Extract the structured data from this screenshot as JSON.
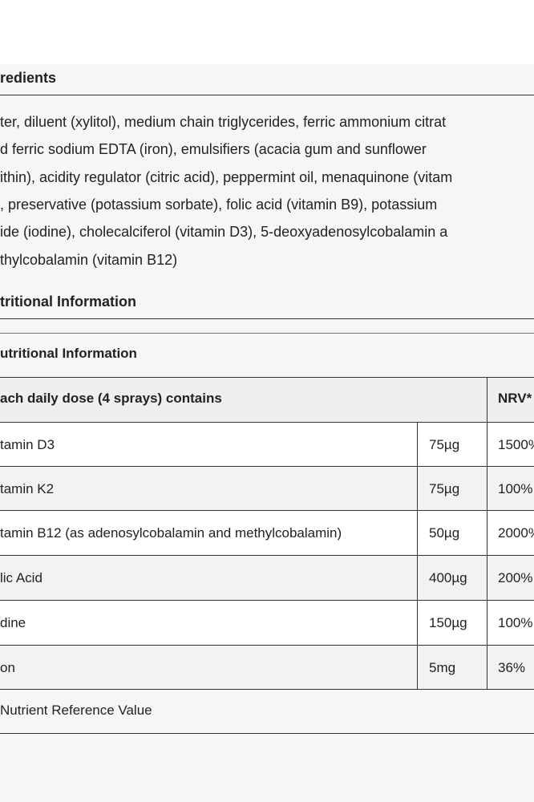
{
  "ingredients": {
    "title": "redients",
    "lines": [
      "ter, diluent (xylitol), medium chain triglycerides, ferric ammonium citrat",
      "d ferric sodium EDTA (iron), emulsifiers (acacia gum and sunflower",
      "ithin), acidity regulator (citric acid), peppermint oil, menaquinone (vitam",
      ", preservative (potassium sorbate), folic acid (vitamin B9), potassium",
      "ide (iodine), cholecalciferol (vitamin D3), 5-deoxyadenosylcobalamin a",
      "thylcobalamin (vitamin B12)"
    ]
  },
  "nutrition": {
    "title": "tritional Information",
    "caption": "utritional Information",
    "table": {
      "header": [
        "ach daily dose (4 sprays) contains",
        "NRV*"
      ],
      "rows": [
        [
          "tamin D3",
          "75µg",
          "1500%"
        ],
        [
          "tamin K2",
          "75µg",
          "100%"
        ],
        [
          "tamin B12 (as adenosylcobalamin and methylcobalamin)",
          "50µg",
          "2000%"
        ],
        [
          "lic Acid",
          "400µg",
          "200%"
        ],
        [
          "dine",
          "150µg",
          "100%"
        ],
        [
          "on",
          "5mg",
          "36%"
        ]
      ]
    },
    "footnote": "Nutrient Reference Value"
  }
}
